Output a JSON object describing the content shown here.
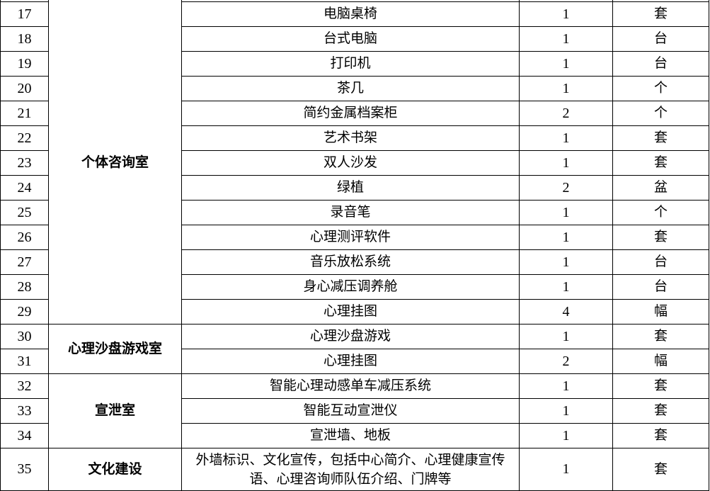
{
  "table": {
    "groups": [
      {
        "room": "个体咨询室",
        "rows": [
          {
            "no": "17",
            "item": "电脑桌椅",
            "qty": "1",
            "unit": "套"
          },
          {
            "no": "18",
            "item": "台式电脑",
            "qty": "1",
            "unit": "台"
          },
          {
            "no": "19",
            "item": "打印机",
            "qty": "1",
            "unit": "台"
          },
          {
            "no": "20",
            "item": "茶几",
            "qty": "1",
            "unit": "个"
          },
          {
            "no": "21",
            "item": "简约金属档案柜",
            "qty": "2",
            "unit": "个"
          },
          {
            "no": "22",
            "item": "艺术书架",
            "qty": "1",
            "unit": "套"
          },
          {
            "no": "23",
            "item": "双人沙发",
            "qty": "1",
            "unit": "套"
          },
          {
            "no": "24",
            "item": "绿植",
            "qty": "2",
            "unit": "盆"
          },
          {
            "no": "25",
            "item": "录音笔",
            "qty": "1",
            "unit": "个"
          },
          {
            "no": "26",
            "item": "心理测评软件",
            "qty": "1",
            "unit": "套"
          },
          {
            "no": "27",
            "item": "音乐放松系统",
            "qty": "1",
            "unit": "台"
          },
          {
            "no": "28",
            "item": "身心减压调养舱",
            "qty": "1",
            "unit": "台"
          },
          {
            "no": "29",
            "item": "心理挂图",
            "qty": "4",
            "unit": "幅"
          }
        ]
      },
      {
        "room": "心理沙盘游戏室",
        "rows": [
          {
            "no": "30",
            "item": "心理沙盘游戏",
            "qty": "1",
            "unit": "套"
          },
          {
            "no": "31",
            "item": "心理挂图",
            "qty": "2",
            "unit": "幅"
          }
        ]
      },
      {
        "room": "宣泄室",
        "rows": [
          {
            "no": "32",
            "item": "智能心理动感单车减压系统",
            "qty": "1",
            "unit": "套"
          },
          {
            "no": "33",
            "item": "智能互动宣泄仪",
            "qty": "1",
            "unit": "套"
          },
          {
            "no": "34",
            "item": "宣泄墙、地板",
            "qty": "1",
            "unit": "套"
          }
        ]
      },
      {
        "room": "文化建设",
        "rows": [
          {
            "no": "35",
            "item": "外墙标识、文化宣传，包括中心简介、心理健康宣传语、心理咨询师队伍介绍、门牌等",
            "qty": "1",
            "unit": "套"
          }
        ]
      }
    ]
  },
  "colors": {
    "border": "#000000",
    "text": "#000000",
    "background": "#ffffff"
  }
}
